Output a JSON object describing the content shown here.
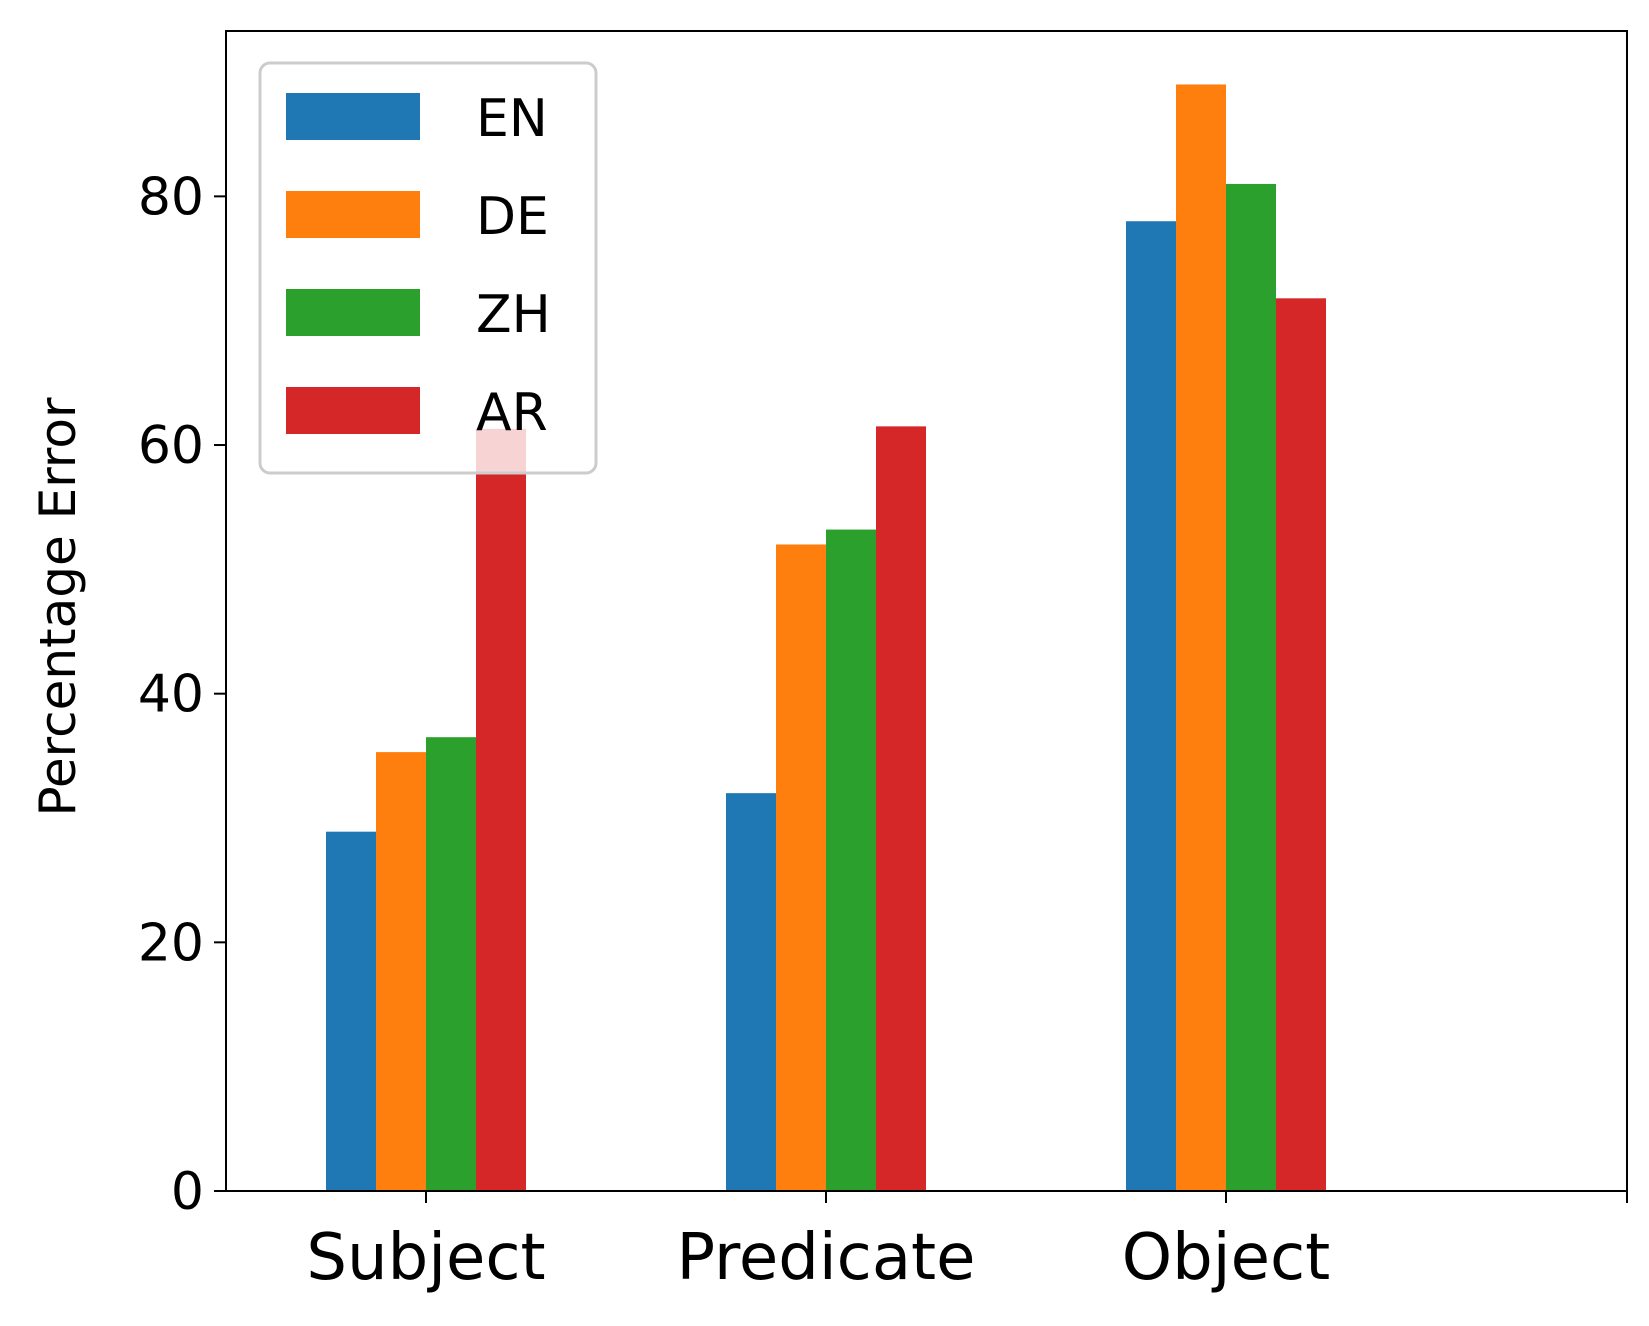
{
  "chart_data": {
    "type": "bar",
    "title": "",
    "xlabel": "",
    "ylabel": "Percentage Error",
    "categories": [
      "Subject",
      "Predicate",
      "Object"
    ],
    "series": [
      {
        "name": "EN",
        "color": "#1f77b4",
        "values": [
          28.9,
          32.0,
          78.0
        ]
      },
      {
        "name": "DE",
        "color": "#ff7f0e",
        "values": [
          35.3,
          52.0,
          89.0
        ]
      },
      {
        "name": "ZH",
        "color": "#2ca02c",
        "values": [
          36.5,
          53.2,
          81.0
        ]
      },
      {
        "name": "AR",
        "color": "#d62728",
        "values": [
          61.3,
          61.5,
          71.8
        ]
      }
    ],
    "ylim": [
      0,
      93.3
    ],
    "yticks": [
      0,
      20,
      40,
      60,
      80
    ],
    "grid": false,
    "legend_position": "top-left"
  }
}
